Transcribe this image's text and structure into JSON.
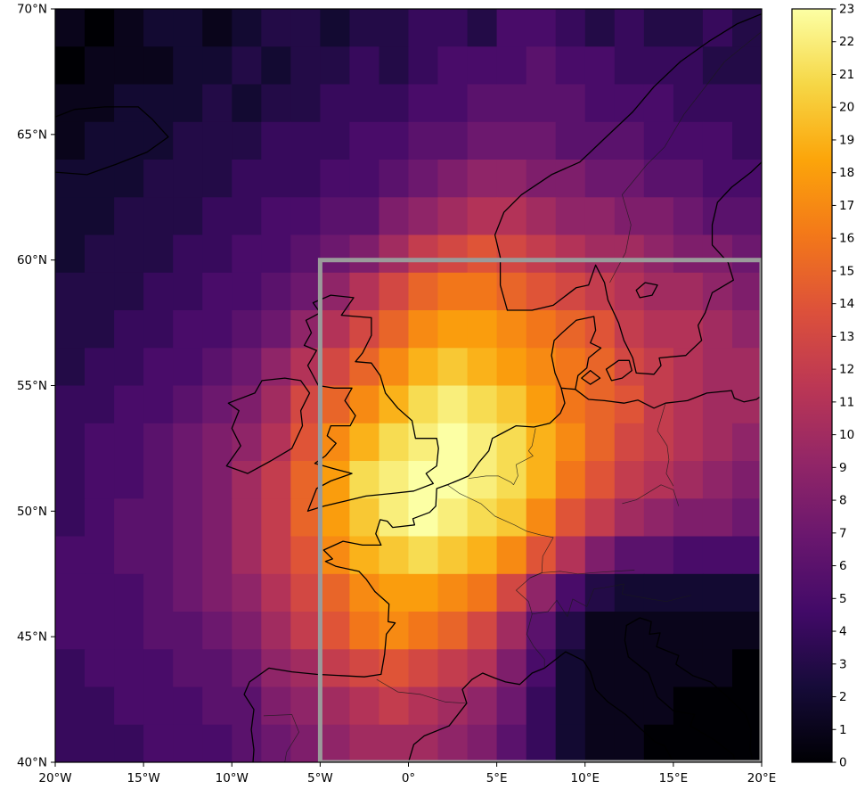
{
  "figure": {
    "background": "#ffffff",
    "colormap": "inferno"
  },
  "chart_data": {
    "type": "heatmap",
    "title": "",
    "xlabel": "",
    "ylabel": "",
    "lon_range": [
      -20,
      20
    ],
    "lat_range": [
      40,
      70
    ],
    "x_ticks": [
      {
        "lon": -20,
        "label": "20°W"
      },
      {
        "lon": -15,
        "label": "15°W"
      },
      {
        "lon": -10,
        "label": "10°W"
      },
      {
        "lon": -5,
        "label": "5°W"
      },
      {
        "lon": 0,
        "label": "0°"
      },
      {
        "lon": 5,
        "label": "5°E"
      },
      {
        "lon": 10,
        "label": "10°E"
      },
      {
        "lon": 15,
        "label": "15°E"
      },
      {
        "lon": 20,
        "label": "20°E"
      }
    ],
    "y_ticks": [
      {
        "lat": 70,
        "label": "70°N"
      },
      {
        "lat": 65,
        "label": "65°N"
      },
      {
        "lat": 60,
        "label": "60°N"
      },
      {
        "lat": 55,
        "label": "55°N"
      },
      {
        "lat": 50,
        "label": "50°N"
      },
      {
        "lat": 45,
        "label": "45°N"
      },
      {
        "lat": 40,
        "label": "40°N"
      }
    ],
    "colorbar": {
      "min": 0,
      "max": 23,
      "ticks": [
        "0",
        "1",
        "2",
        "3",
        "4",
        "5",
        "6",
        "7",
        "8",
        "9",
        "10",
        "11",
        "12",
        "13",
        "14",
        "15",
        "16",
        "17",
        "18",
        "19",
        "20",
        "21",
        "22",
        "23"
      ]
    },
    "highlight_box": {
      "lon_min": -5,
      "lon_max": 20,
      "lat_min": 40,
      "lat_max": 60,
      "color": "#9b9b9b"
    },
    "values_grid": {
      "ncols": 24,
      "nrows": 20,
      "rows": [
        [
          1,
          0,
          1,
          2,
          2,
          1,
          2,
          3,
          3,
          2,
          3,
          3,
          4,
          4,
          3,
          5,
          5,
          4,
          3,
          4,
          3,
          3,
          4,
          3
        ],
        [
          0,
          1,
          1,
          1,
          2,
          2,
          3,
          2,
          3,
          3,
          4,
          3,
          4,
          5,
          5,
          5,
          6,
          5,
          5,
          4,
          4,
          4,
          3,
          3
        ],
        [
          1,
          1,
          2,
          2,
          2,
          3,
          2,
          3,
          3,
          4,
          4,
          4,
          5,
          5,
          6,
          6,
          6,
          6,
          5,
          5,
          5,
          4,
          4,
          4
        ],
        [
          1,
          2,
          2,
          2,
          3,
          3,
          3,
          4,
          4,
          4,
          5,
          5,
          6,
          6,
          7,
          7,
          7,
          6,
          6,
          6,
          5,
          5,
          5,
          4
        ],
        [
          2,
          2,
          2,
          3,
          3,
          3,
          4,
          4,
          4,
          5,
          5,
          6,
          7,
          8,
          9,
          9,
          8,
          8,
          7,
          7,
          6,
          6,
          5,
          5
        ],
        [
          2,
          2,
          3,
          3,
          3,
          4,
          4,
          5,
          5,
          6,
          6,
          8,
          9,
          10,
          11,
          11,
          10,
          9,
          9,
          8,
          8,
          7,
          6,
          6
        ],
        [
          2,
          3,
          3,
          3,
          4,
          4,
          5,
          5,
          6,
          7,
          8,
          10,
          12,
          13,
          14,
          13,
          12,
          11,
          10,
          10,
          9,
          8,
          8,
          7
        ],
        [
          3,
          3,
          3,
          4,
          4,
          5,
          5,
          6,
          7,
          9,
          11,
          13,
          15,
          16,
          16,
          15,
          14,
          13,
          12,
          11,
          10,
          10,
          9,
          8
        ],
        [
          3,
          3,
          4,
          4,
          5,
          5,
          6,
          7,
          9,
          11,
          13,
          15,
          17,
          18,
          18,
          17,
          16,
          15,
          14,
          12,
          11,
          11,
          10,
          9
        ],
        [
          3,
          4,
          4,
          5,
          5,
          6,
          7,
          9,
          11,
          13,
          15,
          17,
          19,
          20,
          19,
          18,
          17,
          16,
          15,
          13,
          12,
          11,
          10,
          10
        ],
        [
          4,
          4,
          5,
          5,
          6,
          7,
          8,
          10,
          13,
          15,
          17,
          19,
          21,
          22,
          21,
          20,
          18,
          16,
          15,
          14,
          12,
          11,
          10,
          10
        ],
        [
          4,
          5,
          5,
          6,
          7,
          8,
          9,
          11,
          14,
          17,
          19,
          21,
          22,
          23,
          22,
          21,
          19,
          17,
          15,
          13,
          12,
          11,
          10,
          9
        ],
        [
          4,
          5,
          5,
          6,
          7,
          8,
          10,
          12,
          15,
          18,
          21,
          22,
          23,
          23,
          22,
          21,
          19,
          16,
          14,
          12,
          11,
          10,
          9,
          8
        ],
        [
          4,
          5,
          6,
          6,
          7,
          8,
          10,
          12,
          15,
          18,
          20,
          22,
          23,
          22,
          21,
          20,
          17,
          14,
          12,
          10,
          9,
          8,
          8,
          7
        ],
        [
          5,
          5,
          6,
          6,
          7,
          8,
          10,
          12,
          14,
          17,
          19,
          20,
          21,
          20,
          19,
          17,
          14,
          11,
          8,
          6,
          6,
          5,
          5,
          5
        ],
        [
          5,
          5,
          5,
          6,
          7,
          8,
          9,
          11,
          13,
          15,
          17,
          18,
          18,
          17,
          16,
          13,
          9,
          5,
          3,
          2,
          2,
          2,
          2,
          2
        ],
        [
          5,
          5,
          5,
          6,
          6,
          7,
          8,
          10,
          12,
          14,
          16,
          17,
          16,
          15,
          13,
          10,
          6,
          3,
          1,
          1,
          1,
          1,
          1,
          1
        ],
        [
          4,
          5,
          5,
          5,
          6,
          6,
          7,
          9,
          10,
          12,
          13,
          14,
          13,
          12,
          11,
          8,
          5,
          2,
          1,
          1,
          1,
          1,
          1,
          0
        ],
        [
          4,
          4,
          5,
          5,
          5,
          6,
          6,
          8,
          9,
          10,
          11,
          12,
          11,
          10,
          9,
          7,
          4,
          2,
          1,
          1,
          1,
          0,
          0,
          0
        ],
        [
          4,
          4,
          4,
          5,
          5,
          5,
          6,
          7,
          8,
          9,
          10,
          10,
          10,
          9,
          8,
          6,
          4,
          2,
          1,
          1,
          0,
          0,
          0,
          0
        ]
      ]
    }
  }
}
